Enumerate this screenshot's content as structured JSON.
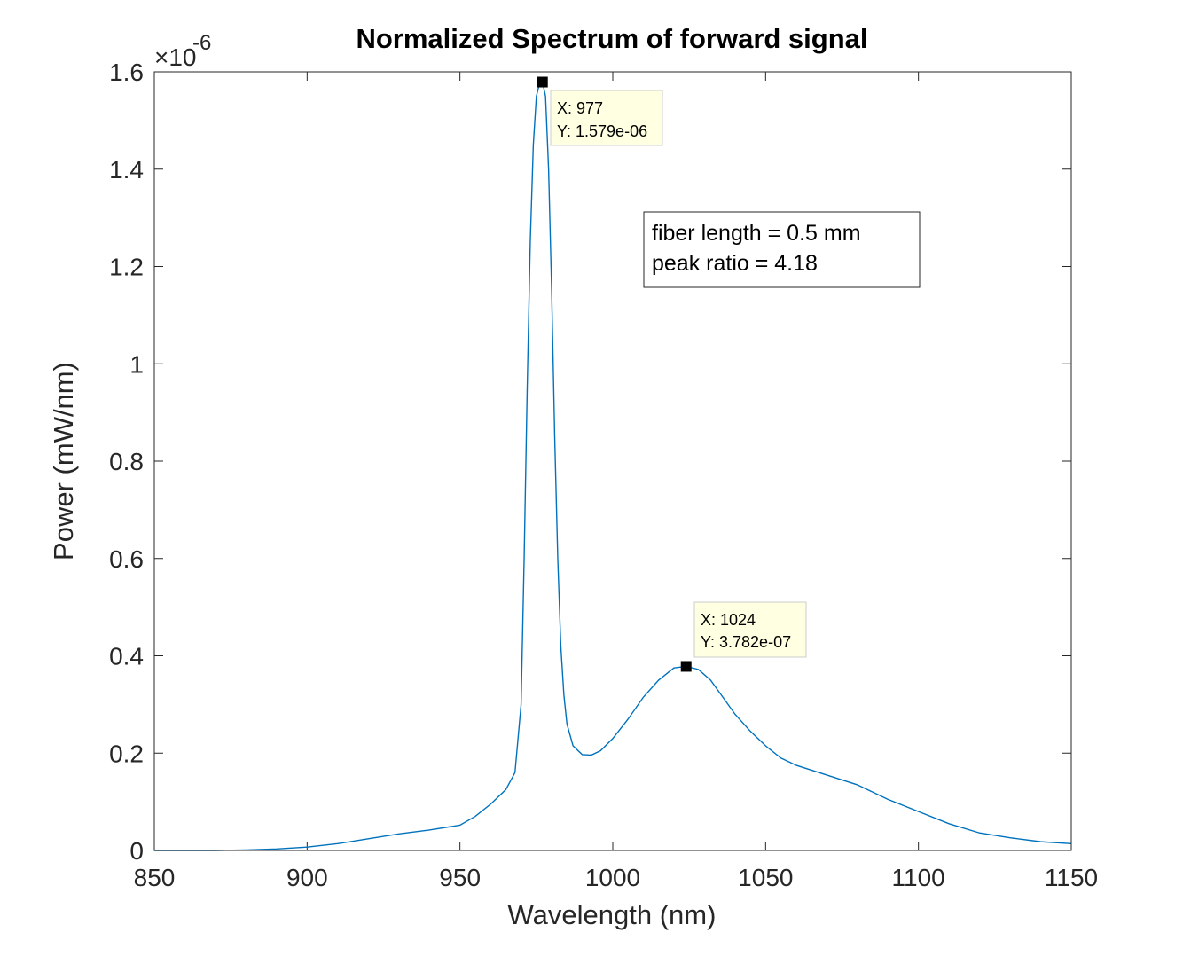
{
  "chart_data": {
    "type": "line",
    "title": "Normalized Spectrum of forward signal",
    "xlabel": "Wavelength (nm)",
    "ylabel": "Power (mW/nm)",
    "xlim": [
      850,
      1150
    ],
    "ylim": [
      0,
      1.6e-06
    ],
    "x_ticks": [
      850,
      900,
      950,
      1000,
      1050,
      1100,
      1150
    ],
    "y_ticks": [
      0,
      0.2,
      0.4,
      0.6,
      0.8,
      1,
      1.2,
      1.4,
      1.6
    ],
    "y_tick_labels": [
      "0",
      "0.2",
      "0.4",
      "0.6",
      "0.8",
      "1",
      "1.2",
      "1.4",
      "1.6"
    ],
    "y_exponent": {
      "base": "×10",
      "power": "-6"
    },
    "grid": false,
    "colors": {
      "line": "#0072bd",
      "datatip_bg": "#ffffe1",
      "marker": "#000000"
    },
    "series": [
      {
        "x": [
          850,
          870,
          880,
          890,
          900,
          910,
          920,
          930,
          940,
          950,
          955,
          960,
          965,
          968,
          970,
          971,
          972,
          973,
          974,
          975,
          976,
          977,
          978,
          979,
          980,
          981,
          982,
          983,
          984,
          985,
          987,
          990,
          993,
          996,
          1000,
          1005,
          1010,
          1015,
          1020,
          1024,
          1028,
          1032,
          1036,
          1040,
          1045,
          1050,
          1055,
          1060,
          1070,
          1080,
          1090,
          1100,
          1110,
          1120,
          1130,
          1140,
          1150
        ],
        "y": [
          0,
          0,
          1e-09,
          3e-09,
          7e-09,
          1.4e-08,
          2.4e-08,
          3.4e-08,
          4.2e-08,
          5.2e-08,
          7e-08,
          9.5e-08,
          1.25e-07,
          1.6e-07,
          3e-07,
          6e-07,
          9.5e-07,
          1.25e-06,
          1.45e-06,
          1.55e-06,
          1.575e-06,
          1.579e-06,
          1.55e-06,
          1.4e-06,
          1.15e-06,
          8.5e-07,
          6e-07,
          4.2e-07,
          3.2e-07,
          2.6e-07,
          2.15e-07,
          1.97e-07,
          1.96e-07,
          2.05e-07,
          2.3e-07,
          2.7e-07,
          3.15e-07,
          3.5e-07,
          3.75e-07,
          3.782e-07,
          3.72e-07,
          3.5e-07,
          3.15e-07,
          2.8e-07,
          2.45e-07,
          2.15e-07,
          1.9e-07,
          1.75e-07,
          1.55e-07,
          1.35e-07,
          1.05e-07,
          8e-08,
          5.5e-08,
          3.6e-08,
          2.6e-08,
          1.8e-08,
          1.4e-08
        ]
      }
    ],
    "annotations": [
      {
        "x": 977,
        "y": 1.579e-06,
        "line1": "X: 977",
        "line2": "Y: 1.579e-06"
      },
      {
        "x": 1024,
        "y": 3.782e-07,
        "line1": "X: 1024",
        "line2": "Y: 3.782e-07"
      }
    ],
    "text_box": {
      "line1": "fiber length = 0.5 mm",
      "line2": "peak ratio = 4.18"
    }
  }
}
